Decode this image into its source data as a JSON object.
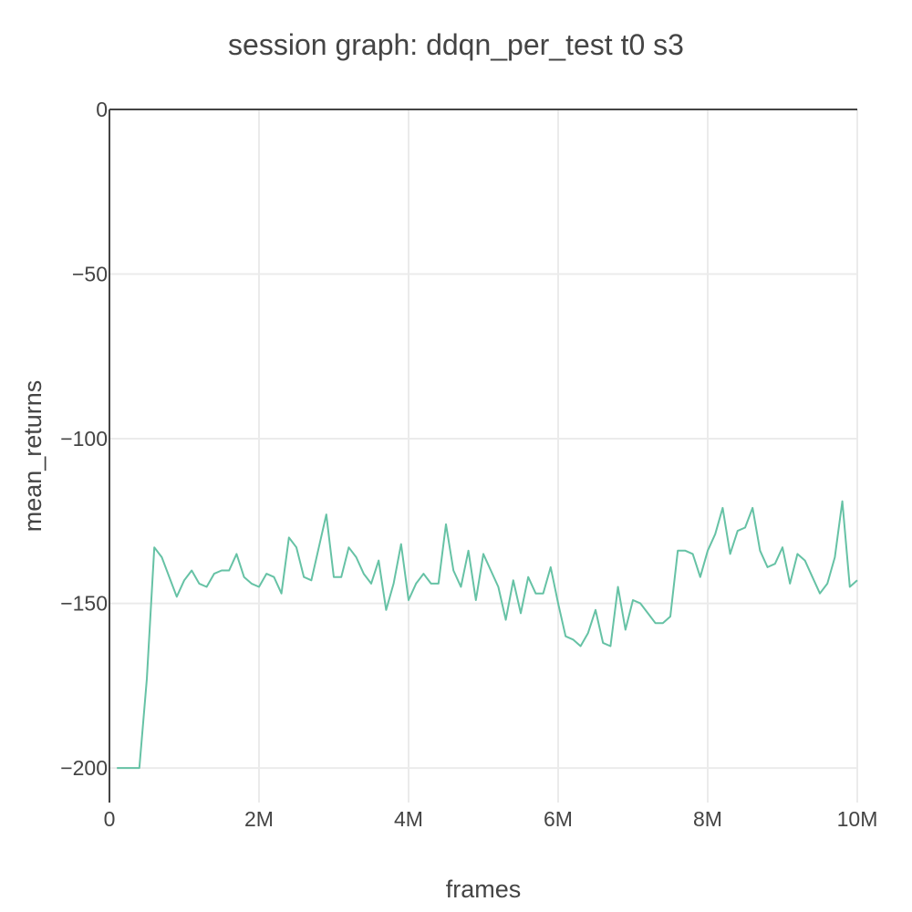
{
  "chart_data": {
    "type": "line",
    "title": "session graph: ddqn_per_test t0 s3",
    "xlabel": "frames",
    "ylabel": "mean_returns",
    "xlim": [
      0,
      10000000
    ],
    "ylim": [
      -210.5,
      0
    ],
    "x_ticks": [
      {
        "value": 0,
        "label": "0"
      },
      {
        "value": 2000000,
        "label": "2M"
      },
      {
        "value": 4000000,
        "label": "4M"
      },
      {
        "value": 6000000,
        "label": "6M"
      },
      {
        "value": 8000000,
        "label": "8M"
      },
      {
        "value": 10000000,
        "label": "10M"
      }
    ],
    "y_ticks": [
      {
        "value": 0,
        "label": "0"
      },
      {
        "value": -50,
        "label": "−50"
      },
      {
        "value": -100,
        "label": "−100"
      },
      {
        "value": -150,
        "label": "−150"
      },
      {
        "value": -200,
        "label": "−200"
      }
    ],
    "grid": true,
    "line_color": "#66c2a5",
    "series": [
      {
        "x": [
          100000,
          200000,
          300000,
          400000,
          500000,
          600000,
          700000,
          800000,
          900000,
          1000000,
          1100000,
          1200000,
          1300000,
          1400000,
          1500000,
          1600000,
          1700000,
          1800000,
          1900000,
          2000000,
          2100000,
          2200000,
          2300000,
          2400000,
          2500000,
          2600000,
          2700000,
          2800000,
          2900000,
          3000000,
          3100000,
          3200000,
          3300000,
          3400000,
          3500000,
          3600000,
          3700000,
          3800000,
          3900000,
          4000000,
          4100000,
          4200000,
          4300000,
          4400000,
          4500000,
          4600000,
          4700000,
          4800000,
          4900000,
          5000000,
          5100000,
          5200000,
          5300000,
          5400000,
          5500000,
          5600000,
          5700000,
          5800000,
          5900000,
          6000000,
          6100000,
          6200000,
          6300000,
          6400000,
          6500000,
          6600000,
          6700000,
          6800000,
          6900000,
          7000000,
          7100000,
          7200000,
          7300000,
          7400000,
          7500000,
          7600000,
          7700000,
          7800000,
          7900000,
          8000000,
          8100000,
          8200000,
          8300000,
          8400000,
          8500000,
          8600000,
          8700000,
          8800000,
          8900000,
          9000000,
          9100000,
          9200000,
          9300000,
          9400000,
          9500000,
          9600000,
          9700000,
          9800000,
          9900000,
          10000000
        ],
        "y": [
          -200,
          -200,
          -200,
          -200,
          -173,
          -133,
          -136,
          -142,
          -148,
          -143,
          -140,
          -144,
          -145,
          -141,
          -140,
          -140,
          -135,
          -142,
          -144,
          -145,
          -141,
          -142,
          -147,
          -130,
          -133,
          -142,
          -143,
          -133,
          -123,
          -142,
          -142,
          -133,
          -136,
          -141,
          -144,
          -137,
          -152,
          -144,
          -132,
          -149,
          -144,
          -141,
          -144,
          -144,
          -126,
          -140,
          -145,
          -134,
          -149,
          -135,
          -140,
          -145,
          -155,
          -143,
          -153,
          -142,
          -147,
          -147,
          -139,
          -150,
          -160,
          -161,
          -163,
          -159,
          -152,
          -162,
          -163,
          -145,
          -158,
          -149,
          -150,
          -153,
          -156,
          -156,
          -154,
          -134,
          -134,
          -135,
          -142,
          -134,
          -129,
          -121,
          -135,
          -128,
          -127,
          -121,
          -134,
          -139,
          -138,
          -133,
          -144,
          -135,
          -137,
          -142,
          -147,
          -144,
          -136,
          -119,
          -145,
          -143
        ]
      }
    ]
  }
}
